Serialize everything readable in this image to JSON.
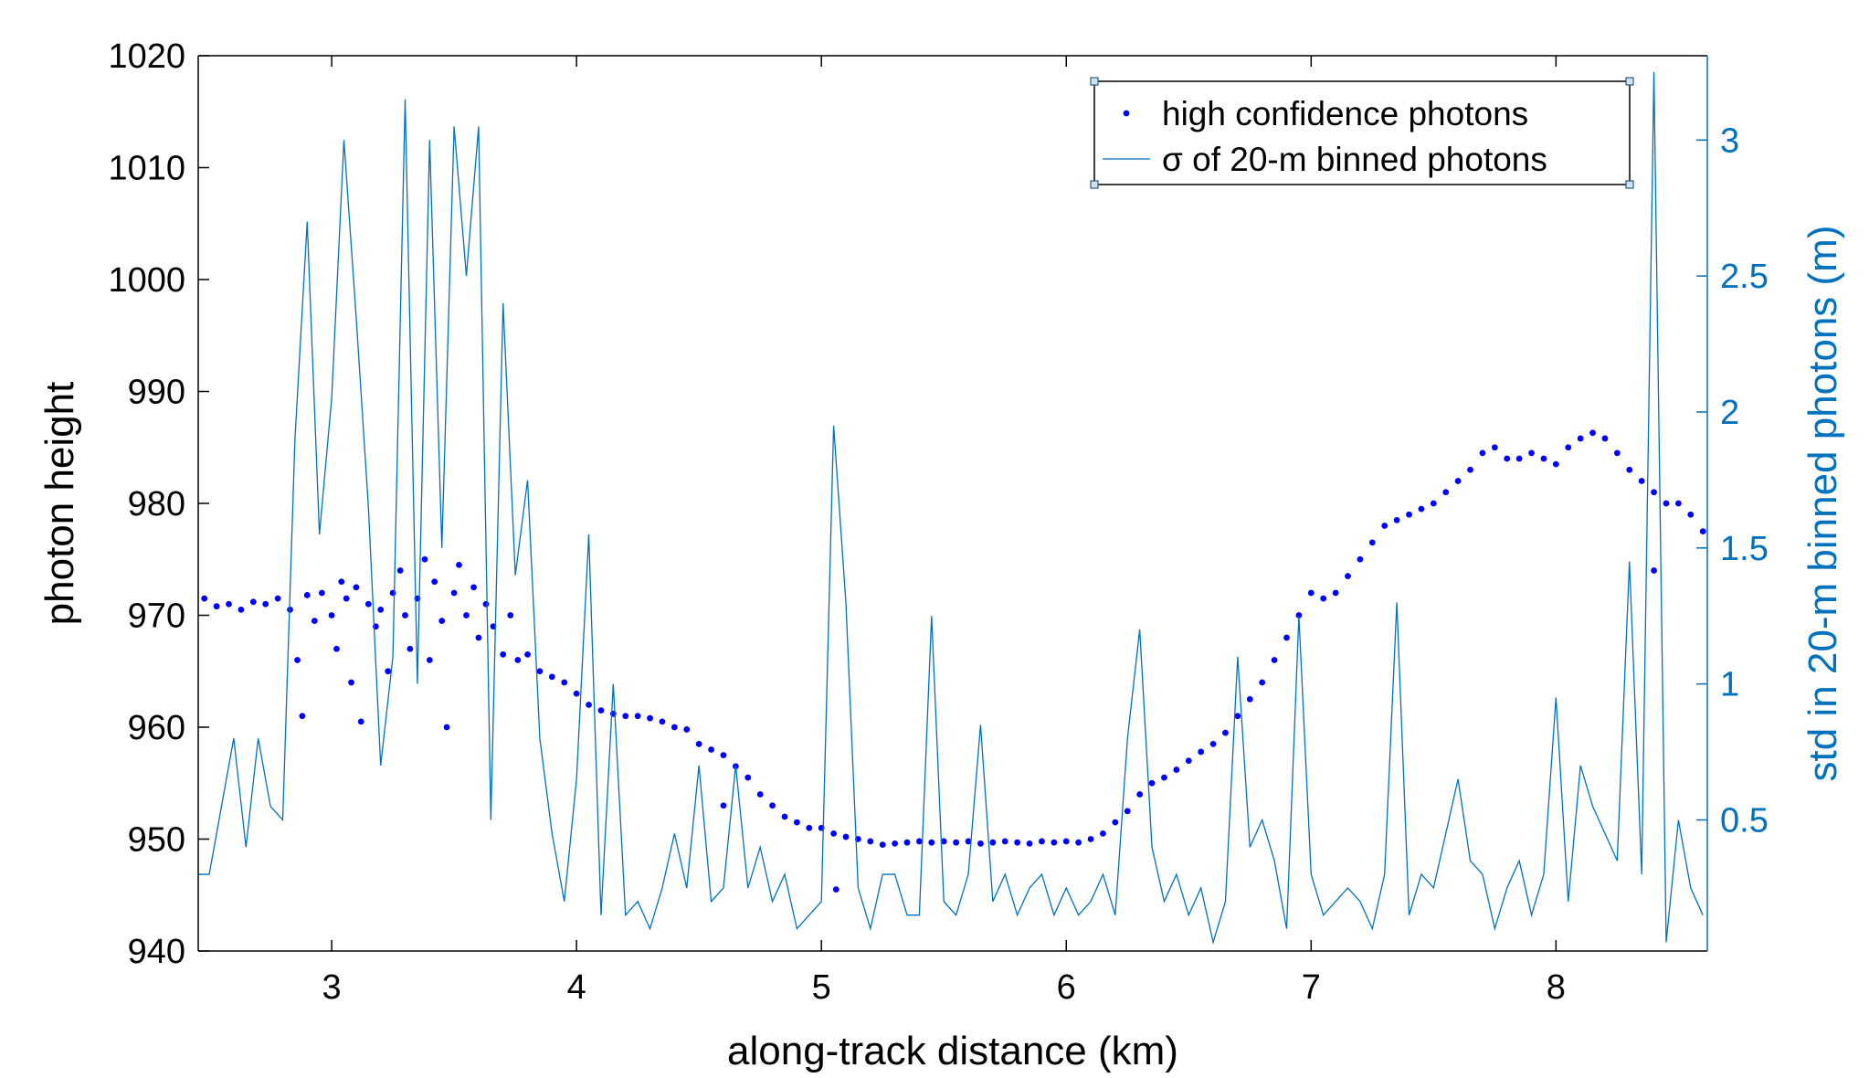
{
  "chart_data": {
    "type": "scatter",
    "xlabel": "along-track distance (km)",
    "ylabel": "photon height",
    "y2label": "std in 20-m binned photons (m)",
    "xlim": [
      2.455,
      8.618
    ],
    "ylim": [
      940,
      1020
    ],
    "y2lim": [
      0.018,
      3.31
    ],
    "xticks": [
      3,
      4,
      5,
      6,
      7,
      8
    ],
    "yticks": [
      940,
      950,
      960,
      970,
      980,
      990,
      1000,
      1010,
      1020
    ],
    "y2ticks": [
      0.5,
      1,
      1.5,
      2,
      2.5,
      3
    ],
    "legend": "upper right",
    "y2color": "#0072bd",
    "series": [
      {
        "name": "high confidence photons",
        "type": "scatter",
        "color": "#0000ff",
        "x": [
          2.48,
          2.53,
          2.58,
          2.63,
          2.68,
          2.73,
          2.78,
          2.83,
          2.86,
          2.88,
          2.9,
          2.93,
          2.96,
          3.0,
          3.02,
          3.04,
          3.06,
          3.08,
          3.1,
          3.12,
          3.15,
          3.18,
          3.2,
          3.23,
          3.25,
          3.28,
          3.3,
          3.32,
          3.35,
          3.38,
          3.4,
          3.42,
          3.45,
          3.47,
          3.5,
          3.52,
          3.55,
          3.58,
          3.6,
          3.63,
          3.66,
          3.7,
          3.73,
          3.76,
          3.8,
          3.85,
          3.9,
          3.95,
          4.0,
          4.05,
          4.1,
          4.15,
          4.2,
          4.25,
          4.3,
          4.35,
          4.4,
          4.45,
          4.5,
          4.55,
          4.6,
          4.65,
          4.7,
          4.75,
          4.8,
          4.85,
          4.9,
          4.95,
          5.0,
          5.05,
          5.1,
          5.15,
          5.2,
          5.25,
          5.3,
          5.35,
          5.4,
          5.45,
          5.5,
          5.55,
          5.6,
          5.65,
          5.7,
          5.75,
          5.8,
          5.85,
          5.9,
          5.95,
          6.0,
          6.05,
          6.1,
          6.15,
          6.2,
          6.25,
          6.3,
          6.35,
          6.4,
          6.45,
          6.5,
          6.55,
          6.6,
          6.65,
          6.7,
          6.75,
          6.8,
          6.85,
          6.9,
          6.95,
          7.0,
          7.05,
          7.1,
          7.15,
          7.2,
          7.25,
          7.3,
          7.35,
          7.4,
          7.45,
          7.5,
          7.55,
          7.6,
          7.65,
          7.7,
          7.75,
          7.8,
          7.85,
          7.9,
          7.95,
          8.0,
          8.05,
          8.1,
          8.15,
          8.2,
          8.25,
          8.3,
          8.35,
          8.4,
          8.45,
          8.5,
          8.55,
          8.6,
          5.06,
          4.6,
          8.4
        ],
        "values": [
          971.5,
          970.8,
          971,
          970.5,
          971.2,
          971,
          971.5,
          970.5,
          966,
          961,
          971.8,
          969.5,
          972,
          970,
          967,
          973,
          971.5,
          964,
          972.5,
          960.5,
          971,
          969,
          970.5,
          965,
          972,
          974,
          970,
          967,
          971.5,
          975,
          966,
          973,
          969.5,
          960,
          972,
          974.5,
          970,
          972.5,
          968,
          971,
          969,
          966.5,
          970,
          966,
          966.5,
          965,
          964.5,
          964,
          963,
          962,
          961.5,
          961.2,
          961,
          961,
          960.8,
          960.5,
          960,
          959.8,
          958.5,
          958,
          957.5,
          956.5,
          955.5,
          954,
          953,
          952,
          951.5,
          951,
          951,
          950.5,
          950.2,
          950,
          949.8,
          949.5,
          949.6,
          949.7,
          949.8,
          949.7,
          949.8,
          949.7,
          949.8,
          949.6,
          949.7,
          949.8,
          949.7,
          949.6,
          949.8,
          949.7,
          949.8,
          949.7,
          950,
          950.5,
          951.5,
          952.5,
          954,
          955,
          955.5,
          956.2,
          957,
          957.8,
          958.5,
          959.5,
          961,
          962.5,
          964,
          966,
          968,
          970,
          972,
          971.5,
          972,
          973.5,
          975,
          976.5,
          978,
          978.5,
          979,
          979.5,
          980,
          981,
          982,
          983,
          984.5,
          985,
          984,
          984,
          984.5,
          984,
          983.5,
          985,
          985.8,
          986.3,
          985.8,
          984.5,
          983,
          982,
          981,
          980,
          980,
          979,
          977.5,
          945.5,
          953,
          974
        ]
      },
      {
        "name": "σ of 20-m binned photons",
        "type": "line",
        "axis": "y2",
        "color": "#0072bd",
        "x": [
          2.45,
          2.5,
          2.55,
          2.6,
          2.65,
          2.7,
          2.75,
          2.8,
          2.85,
          2.9,
          2.95,
          3.0,
          3.05,
          3.1,
          3.15,
          3.2,
          3.25,
          3.3,
          3.35,
          3.4,
          3.45,
          3.5,
          3.55,
          3.6,
          3.65,
          3.7,
          3.75,
          3.8,
          3.85,
          3.9,
          3.95,
          4.0,
          4.05,
          4.1,
          4.15,
          4.2,
          4.25,
          4.3,
          4.35,
          4.4,
          4.45,
          4.5,
          4.55,
          4.6,
          4.65,
          4.7,
          4.75,
          4.8,
          4.85,
          4.9,
          4.95,
          5.0,
          5.05,
          5.1,
          5.15,
          5.2,
          5.25,
          5.3,
          5.35,
          5.4,
          5.45,
          5.5,
          5.55,
          5.6,
          5.65,
          5.7,
          5.75,
          5.8,
          5.85,
          5.9,
          5.95,
          6.0,
          6.05,
          6.1,
          6.15,
          6.2,
          6.25,
          6.3,
          6.35,
          6.4,
          6.45,
          6.5,
          6.55,
          6.6,
          6.65,
          6.7,
          6.75,
          6.8,
          6.85,
          6.9,
          6.95,
          7.0,
          7.05,
          7.1,
          7.15,
          7.2,
          7.25,
          7.3,
          7.35,
          7.4,
          7.45,
          7.5,
          7.55,
          7.6,
          7.65,
          7.7,
          7.75,
          7.8,
          7.85,
          7.9,
          7.95,
          8.0,
          8.05,
          8.1,
          8.15,
          8.2,
          8.25,
          8.3,
          8.35,
          8.4,
          8.45,
          8.5,
          8.55,
          8.6
        ],
        "values": [
          0.3,
          0.3,
          0.55,
          0.8,
          0.4,
          0.8,
          0.55,
          0.5,
          1.9,
          2.7,
          1.55,
          2.05,
          3.0,
          2.35,
          1.65,
          0.7,
          1.1,
          3.15,
          1.0,
          3.0,
          1.5,
          3.05,
          2.5,
          3.05,
          0.5,
          2.4,
          1.4,
          1.75,
          0.8,
          0.45,
          0.2,
          0.65,
          1.55,
          0.15,
          1.0,
          0.15,
          0.2,
          0.1,
          0.25,
          0.45,
          0.25,
          0.7,
          0.2,
          0.25,
          0.7,
          0.25,
          0.4,
          0.2,
          0.3,
          0.1,
          0.15,
          0.2,
          1.95,
          1.3,
          0.25,
          0.1,
          0.3,
          0.3,
          0.15,
          0.15,
          1.25,
          0.2,
          0.15,
          0.3,
          0.85,
          0.2,
          0.3,
          0.15,
          0.25,
          0.3,
          0.15,
          0.25,
          0.15,
          0.2,
          0.3,
          0.15,
          0.8,
          1.2,
          0.4,
          0.2,
          0.3,
          0.15,
          0.25,
          0.05,
          0.2,
          1.1,
          0.4,
          0.5,
          0.35,
          0.1,
          1.25,
          0.3,
          0.15,
          0.2,
          0.25,
          0.2,
          0.1,
          0.3,
          1.3,
          0.15,
          0.3,
          0.25,
          0.45,
          0.65,
          0.35,
          0.3,
          0.1,
          0.25,
          0.35,
          0.15,
          0.3,
          0.95,
          0.2,
          0.7,
          0.55,
          0.45,
          0.35,
          1.45,
          0.3,
          3.25,
          0.05,
          0.5,
          0.25,
          0.15
        ]
      }
    ]
  }
}
